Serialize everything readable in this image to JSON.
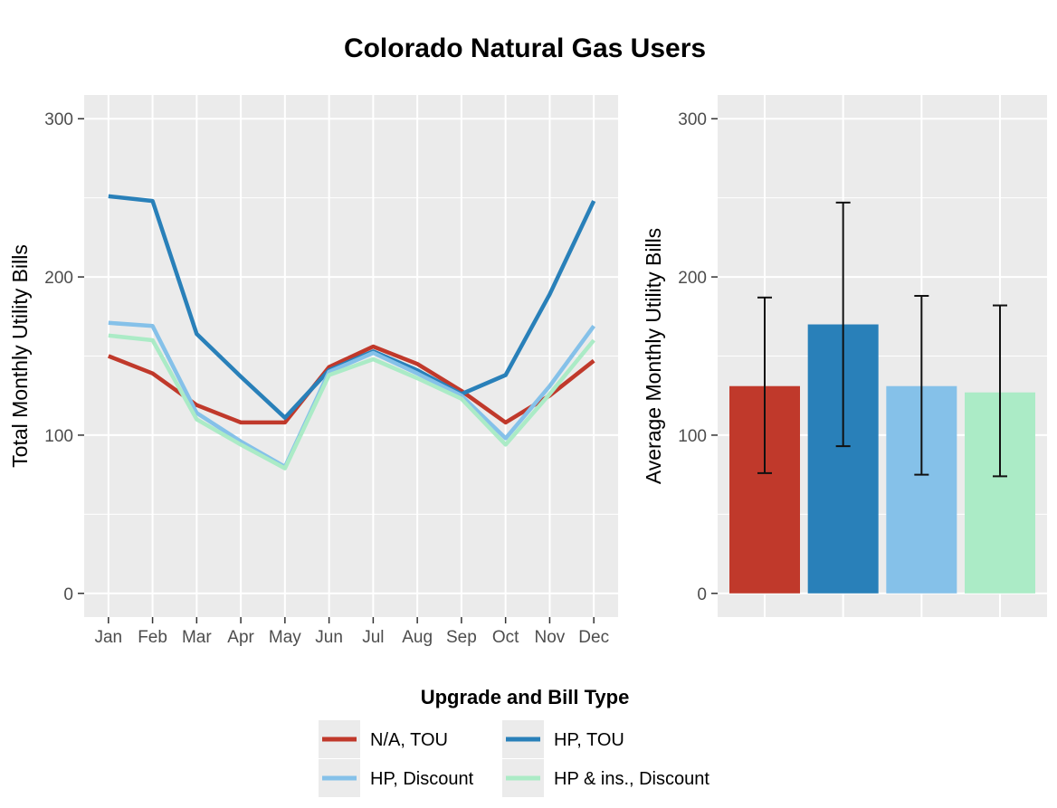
{
  "figure": {
    "title": "Colorado Natural Gas Users",
    "legend_title": "Upgrade and Bill Type",
    "legend_position": "bottom"
  },
  "legend": [
    {
      "label": "N/A, TOU",
      "color": "#c0392b"
    },
    {
      "label": "HP, TOU",
      "color": "#2980b9"
    },
    {
      "label": "HP, Discount",
      "color": "#85c1e9"
    },
    {
      "label": "HP & ins., Discount",
      "color": "#abebc6"
    }
  ],
  "chart_data": [
    {
      "type": "line",
      "ylabel": "Total Monthly Utility Bills",
      "xlabel": "",
      "x": [
        "Jan",
        "Feb",
        "Mar",
        "Apr",
        "May",
        "Jun",
        "Jul",
        "Aug",
        "Sep",
        "Oct",
        "Nov",
        "Dec"
      ],
      "ylim": [
        -15,
        315
      ],
      "yticks": [
        0,
        100,
        200,
        300
      ],
      "grid": true,
      "series": [
        {
          "name": "N/A, TOU",
          "color": "#c0392b",
          "values": [
            150,
            139,
            119,
            108,
            108,
            143,
            156,
            145,
            128,
            108,
            125,
            147
          ]
        },
        {
          "name": "HP, TOU",
          "color": "#2980b9",
          "values": [
            251,
            248,
            164,
            137,
            111,
            141,
            153,
            141,
            126,
            138,
            189,
            248
          ]
        },
        {
          "name": "HP, Discount",
          "color": "#85c1e9",
          "values": [
            171,
            169,
            114,
            96,
            80,
            140,
            152,
            139,
            125,
            98,
            131,
            169
          ]
        },
        {
          "name": "HP & ins., Discount",
          "color": "#abebc6",
          "values": [
            163,
            160,
            110,
            94,
            79,
            138,
            148,
            136,
            123,
            94,
            126,
            160
          ]
        }
      ]
    },
    {
      "type": "bar",
      "ylabel": "Average Monthly Utility Bills",
      "xlabel": "",
      "categories": [
        "N/A, TOU",
        "HP, TOU",
        "HP, Discount",
        "HP & ins., Discount"
      ],
      "values": [
        131,
        170,
        131,
        127
      ],
      "error_low": [
        76,
        93,
        75,
        74
      ],
      "error_high": [
        187,
        247,
        188,
        182
      ],
      "colors": [
        "#c0392b",
        "#2980b9",
        "#85c1e9",
        "#abebc6"
      ],
      "ylim": [
        -15,
        315
      ],
      "yticks": [
        0,
        100,
        200,
        300
      ],
      "grid": true
    }
  ]
}
